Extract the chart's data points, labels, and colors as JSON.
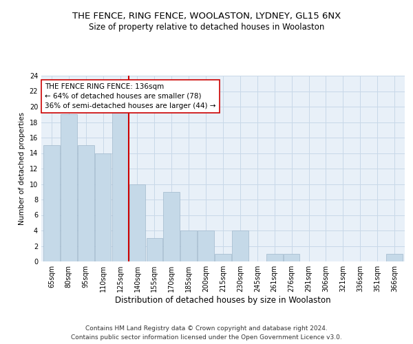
{
  "title": "THE FENCE, RING FENCE, WOOLASTON, LYDNEY, GL15 6NX",
  "subtitle": "Size of property relative to detached houses in Woolaston",
  "xlabel": "Distribution of detached houses by size in Woolaston",
  "ylabel": "Number of detached properties",
  "categories": [
    "65sqm",
    "80sqm",
    "95sqm",
    "110sqm",
    "125sqm",
    "140sqm",
    "155sqm",
    "170sqm",
    "185sqm",
    "200sqm",
    "215sqm",
    "230sqm",
    "245sqm",
    "261sqm",
    "276sqm",
    "291sqm",
    "306sqm",
    "321sqm",
    "336sqm",
    "351sqm",
    "366sqm"
  ],
  "values": [
    15,
    19,
    15,
    14,
    20,
    10,
    3,
    9,
    4,
    4,
    1,
    4,
    0,
    1,
    1,
    0,
    0,
    0,
    0,
    0,
    1
  ],
  "bar_color": "#c5d9e8",
  "bar_edgecolor": "#a0b8cc",
  "vline_x_index": 5,
  "vline_color": "#cc0000",
  "annotation_line1": "THE FENCE RING FENCE: 136sqm",
  "annotation_line2": "← 64% of detached houses are smaller (78)",
  "annotation_line3": "36% of semi-detached houses are larger (44) →",
  "annotation_box_color": "#ffffff",
  "annotation_box_edgecolor": "#cc0000",
  "ylim": [
    0,
    24
  ],
  "yticks": [
    0,
    2,
    4,
    6,
    8,
    10,
    12,
    14,
    16,
    18,
    20,
    22,
    24
  ],
  "background_color": "#ffffff",
  "plot_bg_color": "#e8f0f8",
  "grid_color": "#c8d8e8",
  "footer_line1": "Contains HM Land Registry data © Crown copyright and database right 2024.",
  "footer_line2": "Contains public sector information licensed under the Open Government Licence v3.0.",
  "title_fontsize": 9.5,
  "subtitle_fontsize": 8.5,
  "xlabel_fontsize": 8.5,
  "ylabel_fontsize": 7.5,
  "tick_fontsize": 7,
  "footer_fontsize": 6.5,
  "annotation_fontsize": 7.5
}
